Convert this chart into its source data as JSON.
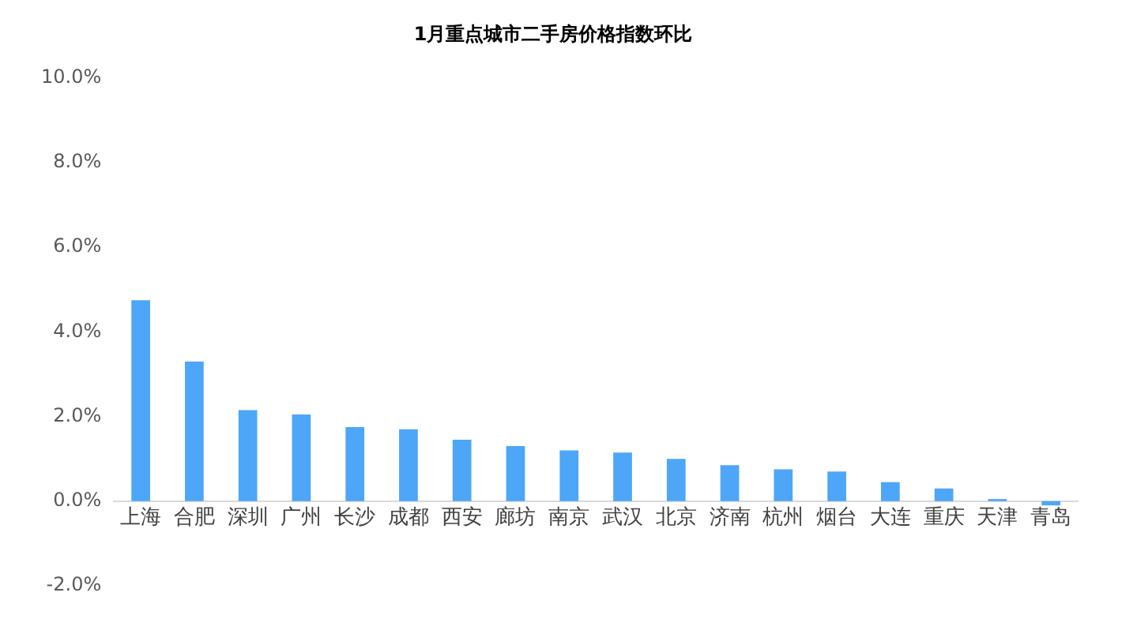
{
  "chart_data": {
    "type": "bar",
    "title": "1月重点城市二手房价格指数环比",
    "categories": [
      "上海",
      "合肥",
      "深圳",
      "广州",
      "长沙",
      "成都",
      "西安",
      "廊坊",
      "南京",
      "武汉",
      "北京",
      "济南",
      "杭州",
      "烟台",
      "大连",
      "重庆",
      "天津",
      "青岛"
    ],
    "values": [
      4.75,
      3.3,
      2.15,
      2.05,
      1.75,
      1.7,
      1.45,
      1.3,
      1.2,
      1.15,
      1.0,
      0.85,
      0.75,
      0.7,
      0.45,
      0.3,
      0.05,
      -0.1
    ],
    "color": "#4da6f7",
    "ylim": [
      -2,
      10
    ],
    "yticks": [
      {
        "value": -2,
        "label": "-2.0%"
      },
      {
        "value": 0,
        "label": "0.0%"
      },
      {
        "value": 2,
        "label": "2.0%"
      },
      {
        "value": 4,
        "label": "4.0%"
      },
      {
        "value": 6,
        "label": "6.0%"
      },
      {
        "value": 8,
        "label": "8.0%"
      },
      {
        "value": 10,
        "label": "10.0%"
      }
    ],
    "grid": false,
    "legend": false
  }
}
